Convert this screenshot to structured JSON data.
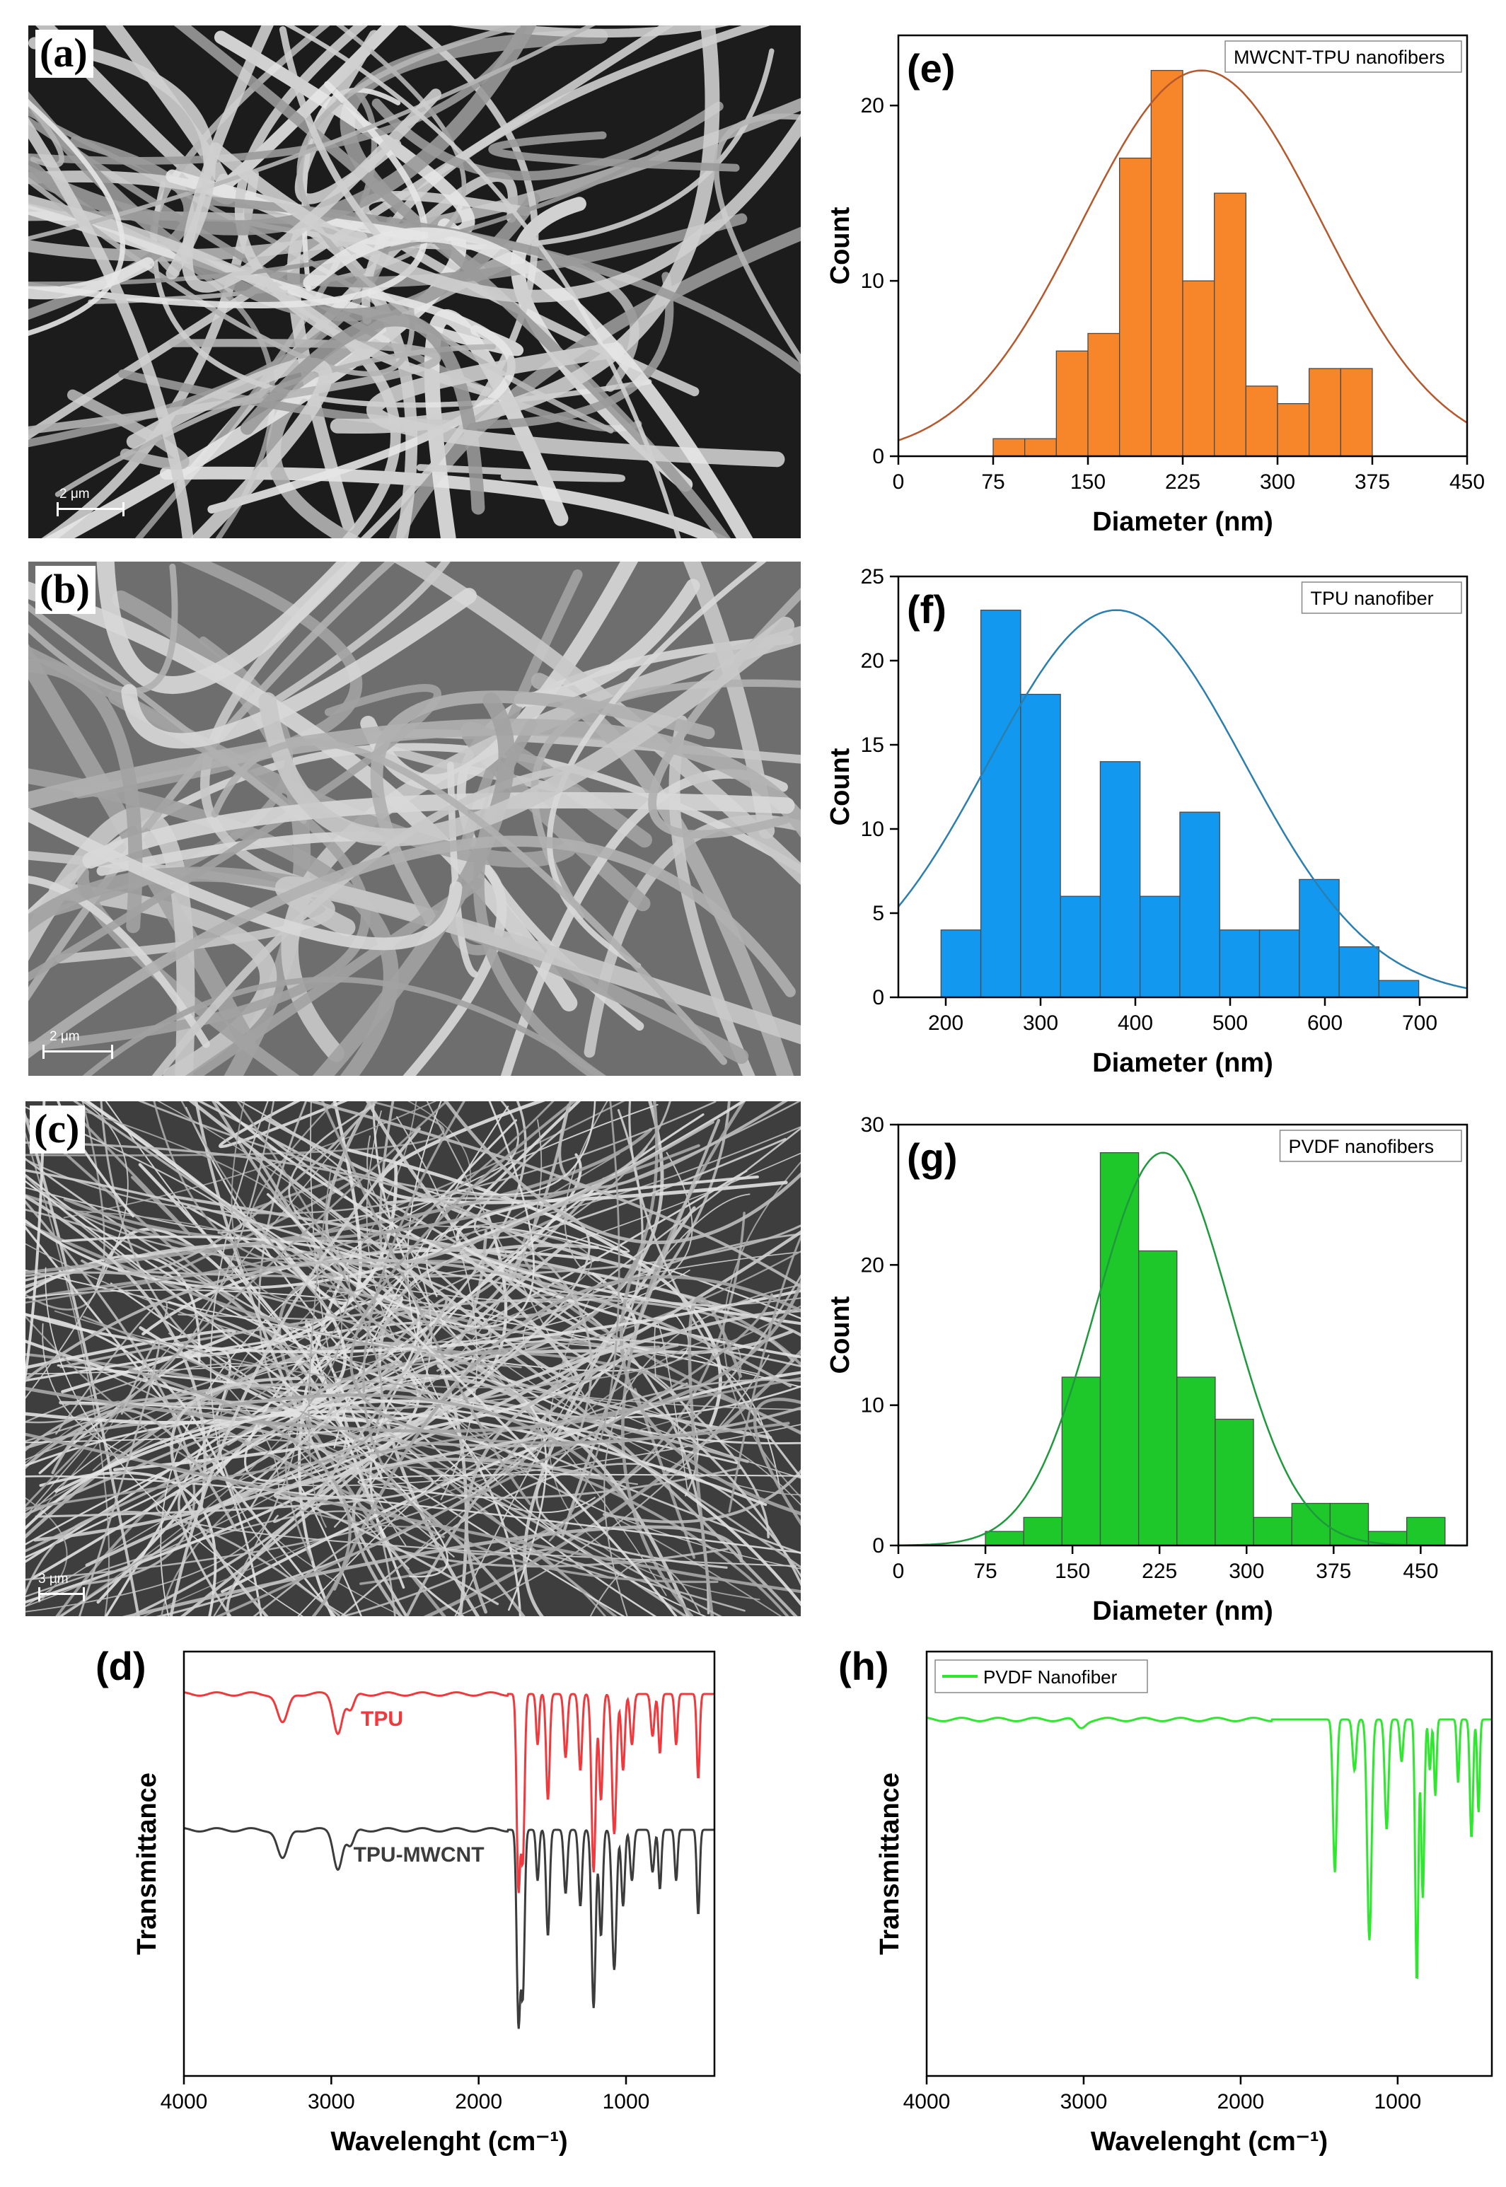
{
  "sem_panels": [
    {
      "label": "(a)",
      "scale": "2 μm"
    },
    {
      "label": "(b)",
      "scale": "2 μm"
    },
    {
      "label": "(c)",
      "scale": "3 μm"
    }
  ],
  "chart_data": [
    {
      "id": "d",
      "panel_label": "(d)",
      "type": "line",
      "xlabel": "Wavelenght (cm⁻¹)",
      "ylabel": "Transmittance",
      "xlim": [
        4000,
        400
      ],
      "xticks": [
        4000,
        3000,
        2000,
        1000
      ],
      "series": [
        {
          "name": "TPU",
          "color": "#f0393c",
          "baseline": 0.9,
          "bands": [
            [
              3330,
              0.07,
              35
            ],
            [
              2955,
              0.09,
              30
            ],
            [
              2870,
              0.04,
              25
            ],
            [
              1730,
              0.45,
              12
            ],
            [
              1700,
              0.38,
              12
            ],
            [
              1600,
              0.12,
              10
            ],
            [
              1530,
              0.25,
              12
            ],
            [
              1410,
              0.15,
              12
            ],
            [
              1310,
              0.18,
              12
            ],
            [
              1220,
              0.42,
              14
            ],
            [
              1170,
              0.25,
              12
            ],
            [
              1080,
              0.33,
              15
            ],
            [
              1020,
              0.18,
              12
            ],
            [
              960,
              0.12,
              12
            ],
            [
              820,
              0.1,
              12
            ],
            [
              770,
              0.14,
              10
            ],
            [
              660,
              0.12,
              10
            ],
            [
              510,
              0.2,
              10
            ]
          ]
        },
        {
          "name": "TPU-MWCNT",
          "color": "#3c3c3c",
          "baseline": 0.58,
          "bands": [
            [
              3330,
              0.07,
              35
            ],
            [
              2955,
              0.09,
              30
            ],
            [
              2870,
              0.04,
              25
            ],
            [
              1730,
              0.45,
              12
            ],
            [
              1700,
              0.38,
              12
            ],
            [
              1600,
              0.12,
              10
            ],
            [
              1530,
              0.25,
              12
            ],
            [
              1410,
              0.15,
              12
            ],
            [
              1310,
              0.18,
              12
            ],
            [
              1220,
              0.42,
              14
            ],
            [
              1170,
              0.25,
              12
            ],
            [
              1080,
              0.33,
              15
            ],
            [
              1020,
              0.18,
              12
            ],
            [
              960,
              0.12,
              12
            ],
            [
              820,
              0.1,
              12
            ],
            [
              770,
              0.14,
              10
            ],
            [
              660,
              0.12,
              10
            ],
            [
              510,
              0.2,
              10
            ]
          ]
        }
      ]
    },
    {
      "id": "e",
      "panel_label": "(e)",
      "type": "bar",
      "legend": "MWCNT-TPU nanofibers",
      "xlabel": "Diameter (nm)",
      "ylabel": "Count",
      "xlim": [
        0,
        450
      ],
      "ylim": [
        0,
        24
      ],
      "xticks": [
        0,
        75,
        150,
        225,
        300,
        375,
        450
      ],
      "yticks": [
        0,
        10,
        20
      ],
      "bin_start": 75,
      "bin_width": 25,
      "counts": [
        1,
        1,
        6,
        7,
        17,
        22,
        10,
        15,
        4,
        3,
        5,
        5
      ],
      "fit": {
        "mean": 240,
        "sd": 95,
        "peak": 22
      },
      "bar_color": "#f7862a",
      "fit_color": "#b5582c"
    },
    {
      "id": "f",
      "panel_label": "(f)",
      "type": "bar",
      "legend": "TPU nanofiber",
      "xlabel": "Diameter (nm)",
      "ylabel": "Count",
      "xlim": [
        150,
        750
      ],
      "ylim": [
        0,
        25
      ],
      "xticks": [
        200,
        300,
        400,
        500,
        600,
        700
      ],
      "yticks": [
        0,
        5,
        10,
        15,
        20,
        25
      ],
      "bin_start": 195,
      "bin_width": 42,
      "counts": [
        4,
        23,
        18,
        6,
        14,
        6,
        11,
        4,
        4,
        7,
        3,
        1
      ],
      "fit": {
        "mean": 380,
        "sd": 135,
        "peak": 23
      },
      "bar_color": "#1398f0",
      "fit_color": "#2a7fae"
    },
    {
      "id": "g",
      "panel_label": "(g)",
      "type": "bar",
      "legend": "PVDF nanofibers",
      "xlabel": "Diameter (nm)",
      "ylabel": "Count",
      "xlim": [
        0,
        490
      ],
      "ylim": [
        0,
        30
      ],
      "xticks": [
        0,
        75,
        150,
        225,
        300,
        375,
        450
      ],
      "yticks": [
        0,
        10,
        20,
        30
      ],
      "bin_start": 75,
      "bin_width": 33,
      "counts": [
        1,
        2,
        12,
        28,
        21,
        12,
        9,
        2,
        3,
        3,
        1,
        2
      ],
      "fit": {
        "mean": 228,
        "sd": 58,
        "peak": 28
      },
      "bar_color": "#1ec82a",
      "fit_color": "#1e9a3c"
    },
    {
      "id": "h",
      "panel_label": "(h)",
      "type": "line",
      "legend": "PVDF Nanofiber",
      "xlabel": "Wavelenght (cm⁻¹)",
      "ylabel": "Transmittance",
      "xlim": [
        4000,
        400
      ],
      "xticks": [
        4000,
        3000,
        2000,
        1000
      ],
      "series": [
        {
          "name": "PVDF Nanofiber",
          "color": "#2ee82e",
          "baseline": 0.84,
          "bands": [
            [
              3020,
              0.02,
              30
            ],
            [
              1400,
              0.36,
              12
            ],
            [
              1275,
              0.12,
              12
            ],
            [
              1180,
              0.52,
              14
            ],
            [
              1070,
              0.26,
              12
            ],
            [
              975,
              0.1,
              10
            ],
            [
              878,
              0.62,
              10
            ],
            [
              840,
              0.42,
              10
            ],
            [
              795,
              0.12,
              8
            ],
            [
              760,
              0.18,
              8
            ],
            [
              615,
              0.15,
              8
            ],
            [
              530,
              0.28,
              10
            ],
            [
              485,
              0.22,
              8
            ]
          ]
        }
      ]
    }
  ]
}
